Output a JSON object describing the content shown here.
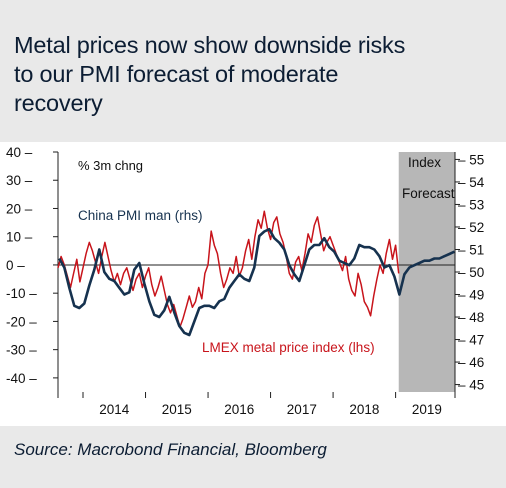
{
  "title_lines": [
    "Metal prices now show downside risks",
    "to our PMI forecast of moderate",
    "recovery"
  ],
  "source": "Source: Macrobond Financial, Bloomberg",
  "colors": {
    "background": "#e9e9e9",
    "pmi": "#16324f",
    "lmex": "#c8141b",
    "forecast_shade": "#b7b7b7",
    "axis": "#1f1f1f"
  },
  "chart_data": {
    "type": "line",
    "left_axis": {
      "unit_label": "% 3m chng",
      "ylim": [
        -45,
        40
      ],
      "ticks": [
        -40,
        -30,
        -20,
        -10,
        0,
        10,
        20,
        30,
        40
      ]
    },
    "right_axis": {
      "label": "Index",
      "ylim": [
        44.67,
        55.33
      ],
      "ticks": [
        45,
        46,
        47,
        48,
        49,
        50,
        51,
        52,
        53,
        54,
        55
      ]
    },
    "x_axis": {
      "labels": [
        "2014",
        "2015",
        "2016",
        "2017",
        "2018",
        "2019"
      ],
      "xlim": [
        2013.6,
        2019.95
      ]
    },
    "forecast": {
      "label": "Forecast",
      "start": 2019.05,
      "end": 2019.95
    },
    "series": [
      {
        "name": "China PMI man (rhs)",
        "axis": "right",
        "color_key": "pmi",
        "x": [
          2013.62,
          2013.7,
          2013.78,
          2013.86,
          2013.94,
          2014.02,
          2014.1,
          2014.18,
          2014.26,
          2014.34,
          2014.42,
          2014.5,
          2014.58,
          2014.66,
          2014.74,
          2014.82,
          2014.9,
          2014.98,
          2015.06,
          2015.14,
          2015.22,
          2015.3,
          2015.38,
          2015.46,
          2015.54,
          2015.62,
          2015.7,
          2015.78,
          2015.86,
          2015.94,
          2016.02,
          2016.1,
          2016.18,
          2016.26,
          2016.34,
          2016.42,
          2016.5,
          2016.58,
          2016.66,
          2016.74,
          2016.82,
          2016.9,
          2016.98,
          2017.06,
          2017.14,
          2017.22,
          2017.3,
          2017.38,
          2017.46,
          2017.54,
          2017.62,
          2017.7,
          2017.78,
          2017.86,
          2017.94,
          2018.02,
          2018.1,
          2018.18,
          2018.26,
          2018.34,
          2018.42,
          2018.5,
          2018.58,
          2018.66,
          2018.74,
          2018.82,
          2018.9,
          2018.98,
          2019.06,
          2019.14,
          2019.22,
          2019.3,
          2019.38,
          2019.46,
          2019.54,
          2019.62,
          2019.7,
          2019.78,
          2019.86,
          2019.94
        ],
        "values": [
          50.6,
          50.2,
          49.3,
          48.5,
          48.4,
          48.6,
          49.4,
          50.1,
          51.0,
          50.0,
          49.7,
          49.6,
          49.3,
          49.0,
          49.1,
          50.1,
          50.4,
          49.5,
          48.7,
          48.1,
          48.0,
          48.3,
          48.9,
          48.2,
          47.6,
          47.3,
          47.2,
          47.8,
          48.4,
          48.5,
          48.5,
          48.4,
          48.7,
          48.8,
          49.3,
          49.6,
          49.9,
          49.7,
          49.6,
          50.2,
          51.6,
          51.8,
          51.9,
          51.5,
          51.3,
          51.0,
          50.3,
          49.9,
          49.6,
          50.3,
          51.0,
          51.2,
          51.2,
          51.5,
          51.1,
          50.9,
          50.5,
          50.4,
          50.3,
          50.6,
          51.2,
          51.1,
          51.1,
          51.0,
          50.7,
          50.2,
          50.3,
          49.8,
          49.0,
          49.9,
          50.2,
          50.3,
          50.4,
          50.5,
          50.5,
          50.6,
          50.6,
          50.7,
          50.8,
          50.9
        ]
      },
      {
        "name": "LMEX metal price index (lhs)",
        "axis": "left",
        "color_key": "lmex",
        "x": [
          2013.6,
          2013.65,
          2013.7,
          2013.75,
          2013.8,
          2013.85,
          2013.9,
          2013.95,
          2014.0,
          2014.05,
          2014.1,
          2014.15,
          2014.2,
          2014.25,
          2014.3,
          2014.35,
          2014.4,
          2014.45,
          2014.5,
          2014.55,
          2014.6,
          2014.65,
          2014.7,
          2014.75,
          2014.8,
          2014.85,
          2014.9,
          2014.95,
          2015.0,
          2015.05,
          2015.1,
          2015.15,
          2015.2,
          2015.25,
          2015.3,
          2015.35,
          2015.4,
          2015.45,
          2015.5,
          2015.55,
          2015.6,
          2015.65,
          2015.7,
          2015.75,
          2015.8,
          2015.85,
          2015.9,
          2015.95,
          2016.0,
          2016.05,
          2016.1,
          2016.15,
          2016.2,
          2016.25,
          2016.3,
          2016.35,
          2016.4,
          2016.45,
          2016.5,
          2016.55,
          2016.6,
          2016.65,
          2016.7,
          2016.75,
          2016.8,
          2016.85,
          2016.9,
          2016.95,
          2017.0,
          2017.05,
          2017.1,
          2017.15,
          2017.2,
          2017.25,
          2017.3,
          2017.35,
          2017.4,
          2017.45,
          2017.5,
          2017.55,
          2017.6,
          2017.65,
          2017.7,
          2017.75,
          2017.8,
          2017.85,
          2017.9,
          2017.95,
          2018.0,
          2018.05,
          2018.1,
          2018.15,
          2018.2,
          2018.25,
          2018.3,
          2018.35,
          2018.4,
          2018.45,
          2018.5,
          2018.55,
          2018.6,
          2018.65,
          2018.7,
          2018.75,
          2018.8,
          2018.85,
          2018.9,
          2018.95,
          2019.0,
          2019.05
        ],
        "values": [
          -1,
          3,
          0,
          -4,
          -8,
          -3,
          2,
          -6,
          -1,
          4,
          8,
          5,
          1,
          -3,
          3,
          8,
          3,
          -2,
          -6,
          -3,
          -7,
          -3,
          -1,
          -5,
          -9,
          -5,
          -3,
          -8,
          -4,
          -1,
          -7,
          -11,
          -8,
          -4,
          -9,
          -14,
          -17,
          -14,
          -18,
          -22,
          -19,
          -15,
          -11,
          -15,
          -13,
          -8,
          -12,
          -3,
          0,
          12,
          7,
          4,
          -3,
          -8,
          -5,
          -1,
          -3,
          3,
          -4,
          -1,
          5,
          9,
          2,
          10,
          16,
          13,
          19,
          13,
          9,
          15,
          17,
          11,
          8,
          3,
          -3,
          -5,
          1,
          3,
          -2,
          4,
          11,
          8,
          14,
          17,
          11,
          5,
          8,
          10,
          7,
          4,
          1,
          -2,
          3,
          -5,
          -9,
          -11,
          -3,
          -7,
          -13,
          -15,
          -18,
          -11,
          -5,
          0,
          -3,
          4,
          9,
          2,
          7,
          -3
        ]
      }
    ]
  }
}
